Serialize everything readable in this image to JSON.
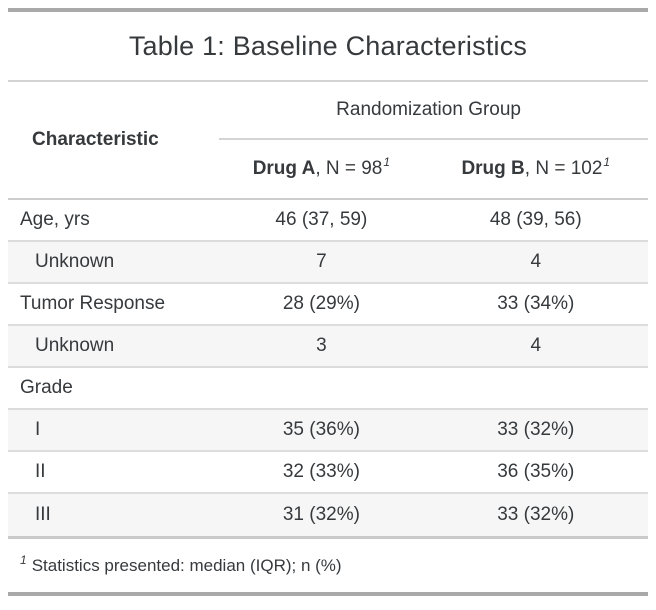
{
  "title": "Table 1: Baseline Characteristics",
  "header": {
    "stub_label": "Characteristic",
    "spanner": "Randomization Group",
    "columns": [
      {
        "name": "Drug A",
        "suffix": ", N = 98",
        "footnote_mark": "1"
      },
      {
        "name": "Drug B",
        "suffix": ", N = 102",
        "footnote_mark": "1"
      }
    ]
  },
  "body": {
    "rows": [
      {
        "label": "Age, yrs",
        "drug_a": "46 (37, 59)",
        "drug_b": "48 (39, 56)"
      },
      {
        "label": "Unknown",
        "drug_a": "7",
        "drug_b": "4"
      },
      {
        "label": "Tumor Response",
        "drug_a": "28 (29%)",
        "drug_b": "33 (34%)"
      },
      {
        "label": "Unknown",
        "drug_a": "3",
        "drug_b": "4"
      },
      {
        "label": "Grade",
        "drug_a": "",
        "drug_b": ""
      },
      {
        "label": "I",
        "drug_a": "35 (36%)",
        "drug_b": "33 (32%)"
      },
      {
        "label": "II",
        "drug_a": "32 (33%)",
        "drug_b": "36 (35%)"
      },
      {
        "label": "III",
        "drug_a": "31 (32%)",
        "drug_b": "33 (32%)"
      }
    ]
  },
  "footnote": {
    "mark": "1",
    "text": "Statistics presented: median (IQR); n (%)"
  },
  "colors": {
    "text": "#363a3d",
    "end_bars": "#a9a9a9",
    "major_rule": "#d4d4d4",
    "row_rule": "#dcdcdc",
    "stripe_background": "#f6f6f6"
  },
  "chart_data": {
    "type": "table",
    "title": "Table 1: Baseline Characteristics",
    "column_spanner": "Randomization Group",
    "columns": [
      "Characteristic",
      "Drug A, N = 98",
      "Drug B, N = 102"
    ],
    "rows": [
      [
        "Age, yrs",
        "46 (37, 59)",
        "48 (39, 56)"
      ],
      [
        "Unknown",
        "7",
        "4"
      ],
      [
        "Tumor Response",
        "28 (29%)",
        "33 (34%)"
      ],
      [
        "Unknown",
        "3",
        "4"
      ],
      [
        "Grade",
        "",
        ""
      ],
      [
        "I",
        "35 (36%)",
        "33 (32%)"
      ],
      [
        "II",
        "32 (33%)",
        "36 (35%)"
      ],
      [
        "III",
        "31 (32%)",
        "33 (32%)"
      ]
    ],
    "indented_row_labels": [
      "Unknown",
      "Unknown",
      "I",
      "II",
      "III"
    ],
    "footnote": "1 Statistics presented: median (IQR); n (%)",
    "layout_hints": "zebra striping on even body rows; spanner underline over value columns only"
  }
}
